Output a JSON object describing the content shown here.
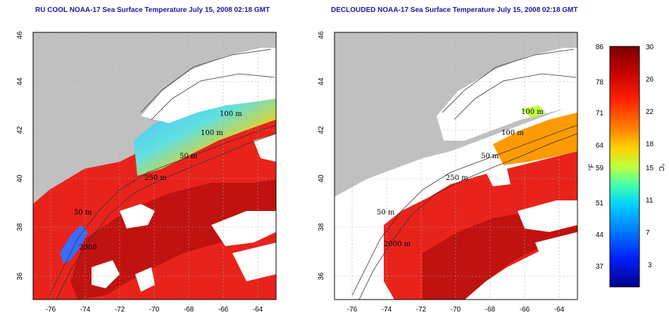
{
  "left_map": {
    "title": "RU COOL NOAA-17 Sea Surface Temperature July 15, 2008 02:18 GMT",
    "contour_labels": [
      "100 m",
      "100 m",
      "50 m",
      "250 m",
      "50 m",
      "2000"
    ]
  },
  "right_map": {
    "title": "DECLOUDED NOAA-17 Sea Surface Temperature July 15, 2008 02:18 GMT",
    "contour_labels": [
      "100 m",
      "100 m",
      "50 m",
      "250 m",
      "50 m",
      "2000 m"
    ]
  },
  "axes": {
    "lon_ticks": [
      "-76",
      "-74",
      "-72",
      "-70",
      "-68",
      "-66",
      "-64"
    ],
    "lat_ticks": [
      "46",
      "44",
      "42",
      "40",
      "38",
      "36"
    ]
  },
  "colorbar": {
    "unit_f": "°F",
    "unit_c": "°C",
    "f_ticks": [
      "86",
      "78",
      "71",
      "64",
      "59",
      "51",
      "44",
      "37"
    ],
    "c_ticks": [
      "30",
      "26",
      "22",
      "18",
      "15",
      "11",
      "7",
      "3"
    ]
  },
  "colors": {
    "title": "#1a1a9c",
    "land": "#c0c0c0",
    "ocean_warm": "#e8231b",
    "ocean_deep": "#c0120f",
    "cloud": "#ffffff",
    "grid": "#aaaaaa"
  }
}
